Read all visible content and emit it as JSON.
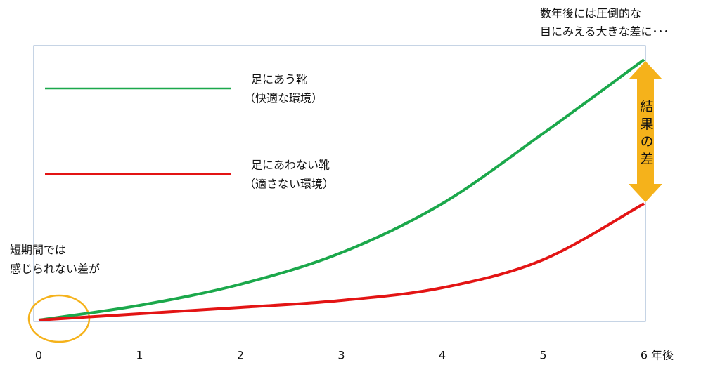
{
  "chart_data": {
    "type": "line",
    "x": [
      0,
      1,
      2,
      3,
      4,
      5,
      6
    ],
    "xlim": [
      0,
      6
    ],
    "xticks": [
      0,
      1,
      2,
      3,
      4,
      5,
      6
    ],
    "xlabel": "年後",
    "ylim": [
      0,
      391
    ],
    "series": [
      {
        "name": "足にあう靴",
        "subname": "（快適な環境）",
        "color": "#1ba84b",
        "values": [
          0,
          21,
          51,
          96,
          166,
          266,
          371
        ]
      },
      {
        "name": "足にあわない靴",
        "subname": "（適さない環境）",
        "color": "#e31414",
        "values": [
          0,
          9,
          18,
          28,
          46,
          86,
          166
        ]
      }
    ],
    "annotations": {
      "top_right": [
        "数年後には圧倒的な",
        "目にみえる大きな差に･･･"
      ],
      "gap": "結果の差",
      "left": [
        "短期間では",
        "感じられない差が"
      ]
    }
  }
}
